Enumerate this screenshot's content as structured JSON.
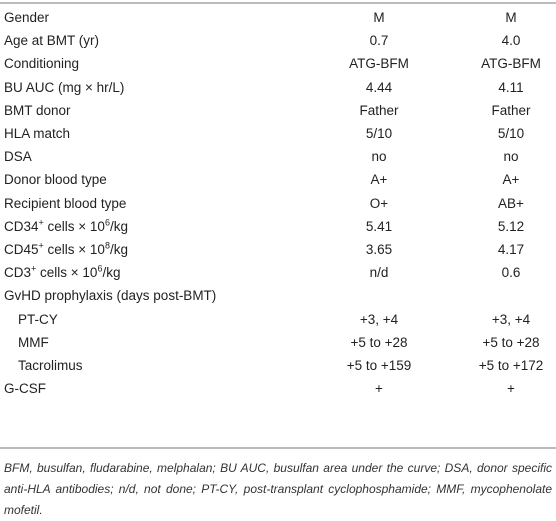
{
  "table": {
    "rows": [
      {
        "label": [
          "Gender"
        ],
        "values": [
          "M",
          "M"
        ]
      },
      {
        "label": [
          "Age at BMT (yr)"
        ],
        "values": [
          "0.7",
          "4.0"
        ]
      },
      {
        "label": [
          "Conditioning"
        ],
        "values": [
          "ATG-BFM",
          "ATG-BFM"
        ]
      },
      {
        "label": [
          "BU AUC (mg × hr/L)"
        ],
        "values": [
          "4.44",
          "4.11"
        ]
      },
      {
        "label": [
          "BMT donor"
        ],
        "values": [
          "Father",
          "Father"
        ]
      },
      {
        "label": [
          "HLA match"
        ],
        "values": [
          "5/10",
          "5/10"
        ]
      },
      {
        "label": [
          "DSA"
        ],
        "values": [
          "no",
          "no"
        ]
      },
      {
        "label": [
          "Donor blood type"
        ],
        "values": [
          "A+",
          "A+"
        ]
      },
      {
        "label": [
          "Recipient blood type"
        ],
        "values": [
          "O+",
          "AB+"
        ]
      },
      {
        "label": [
          "CD34",
          "+",
          " cells × 10",
          "6",
          "/kg"
        ],
        "values": [
          "5.41",
          "5.12"
        ]
      },
      {
        "label": [
          "CD45",
          "+",
          " cells × 10",
          "8",
          "/kg"
        ],
        "values": [
          "3.65",
          "4.17"
        ]
      },
      {
        "label": [
          "CD3",
          "+",
          " cells × 10",
          "6",
          "/kg"
        ],
        "values": [
          "n/d",
          "0.6"
        ]
      },
      {
        "label": [
          "GvHD prophylaxis (days post-BMT)"
        ],
        "values": []
      },
      {
        "label": [
          "PT-CY"
        ],
        "values": [
          "+3, +4",
          "+3, +4"
        ],
        "indent": true
      },
      {
        "label": [
          "MMF"
        ],
        "values": [
          "+5 to +28",
          "+5 to +28"
        ],
        "indent": true
      },
      {
        "label": [
          "Tacrolimus"
        ],
        "values": [
          "+5 to +159",
          "+5 to +172"
        ],
        "indent": true
      },
      {
        "label": [
          "G-CSF"
        ],
        "values": [
          "+",
          "+"
        ]
      }
    ]
  },
  "footnote": "BFM, busulfan, fludarabine, melphalan; BU AUC, busulfan area under the curve; DSA, donor specific anti-HLA antibodies; n/d, not done; PT-CY, post-transplant cyclophosphamide; MMF, mycophenolate mofetil."
}
